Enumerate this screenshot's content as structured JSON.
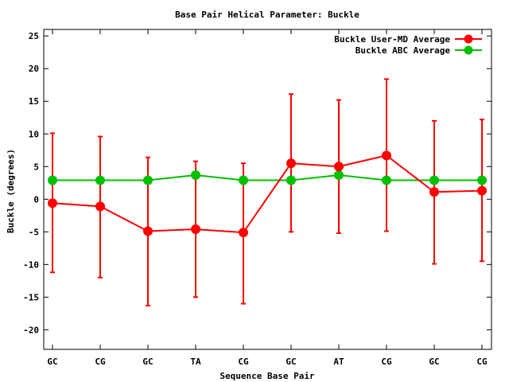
{
  "chart_data": {
    "type": "line",
    "title": "Base Pair Helical Parameter: Buckle",
    "xlabel": "Sequence Base Pair",
    "ylabel": "Buckle (degrees)",
    "categories": [
      "GC",
      "CG",
      "GC",
      "TA",
      "CG",
      "GC",
      "AT",
      "CG",
      "GC",
      "CG"
    ],
    "ylim": [
      -23,
      26
    ],
    "yticks": [
      -20,
      -15,
      -10,
      -5,
      0,
      5,
      10,
      15,
      20,
      25
    ],
    "ytick_labels": [
      "-20",
      "-15",
      "-10",
      "-5",
      "0",
      "5",
      "10",
      "15",
      "20",
      "25"
    ],
    "legend_position": "top-right",
    "grid": false,
    "series": [
      {
        "name": "Buckle User-MD Average",
        "color": "#ff0000",
        "values": [
          -0.6,
          -1.1,
          -4.9,
          -4.6,
          -5.1,
          5.5,
          5.0,
          6.7,
          1.1,
          1.3
        ],
        "error_low": [
          -11.2,
          -12.0,
          -16.3,
          -15.0,
          -16.0,
          -5.0,
          -5.2,
          -4.9,
          -9.9,
          -9.5
        ],
        "error_high": [
          10.1,
          9.6,
          6.4,
          5.8,
          5.5,
          16.1,
          15.2,
          18.4,
          12.0,
          12.2
        ]
      },
      {
        "name": "Buckle ABC Average",
        "color": "#00c000",
        "values": [
          2.9,
          2.9,
          2.9,
          3.7,
          2.9,
          2.9,
          3.7,
          2.9,
          2.9,
          2.9
        ]
      }
    ]
  }
}
